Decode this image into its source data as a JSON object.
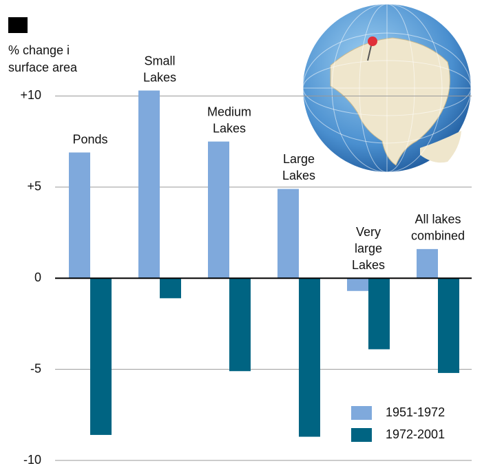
{
  "chart_data": {
    "type": "bar",
    "ylabel": [
      "% change i",
      "surface area"
    ],
    "categories": [
      [
        "Ponds"
      ],
      [
        "Small",
        "Lakes"
      ],
      [
        "Medium",
        "Lakes"
      ],
      [
        "Large",
        "Lakes"
      ],
      [
        "Very",
        "large",
        "Lakes"
      ],
      [
        "All lakes",
        "combined"
      ]
    ],
    "series": [
      {
        "name": "1951-1972",
        "color": "#7fa9dc",
        "values": [
          6.9,
          10.3,
          7.5,
          4.9,
          -0.7,
          1.6
        ]
      },
      {
        "name": "1972-2001",
        "color": "#006482",
        "values": [
          -8.6,
          -1.1,
          -5.1,
          -8.7,
          -3.9,
          -5.2
        ]
      }
    ],
    "ylim": [
      -10,
      10.5
    ],
    "yticks": [
      {
        "value": 10,
        "label": "+10"
      },
      {
        "value": 5,
        "label": "+5"
      },
      0,
      -5,
      -10
    ],
    "grid": true,
    "legend": "lower right"
  }
}
